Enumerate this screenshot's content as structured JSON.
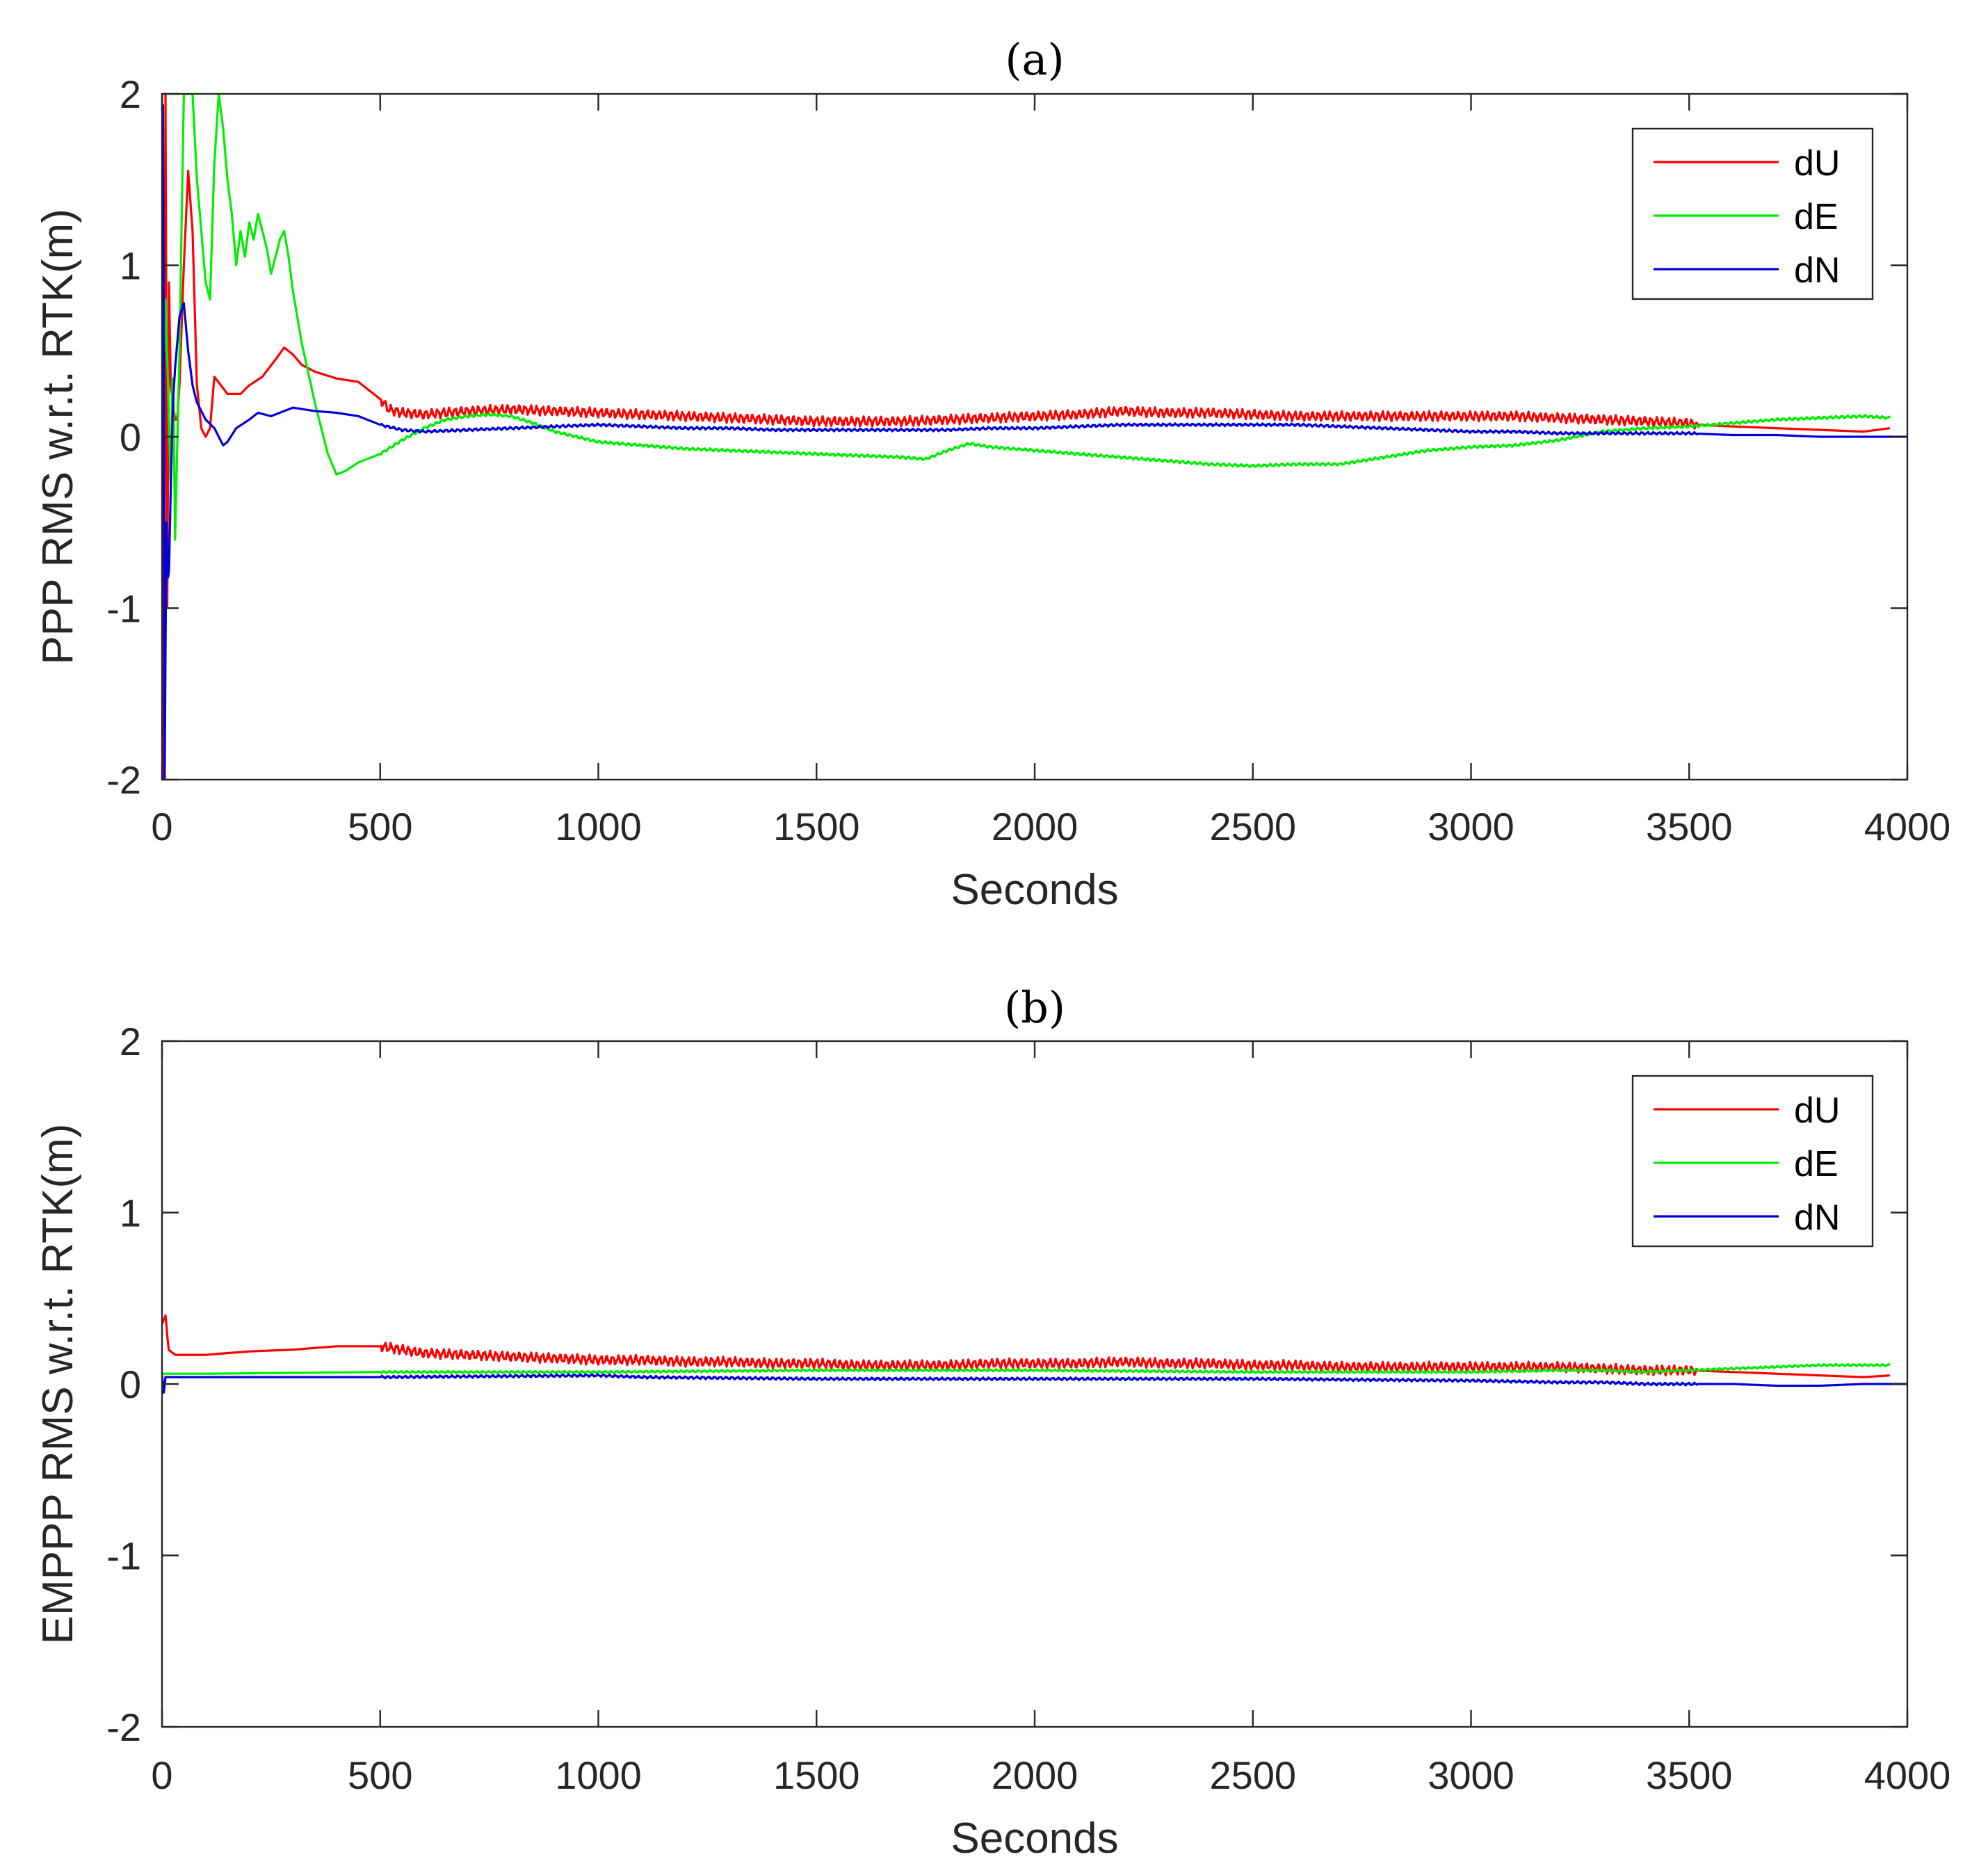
{
  "chart_data": [
    {
      "type": "line",
      "title": "(a)",
      "xlabel": "Seconds",
      "ylabel": "PPP RMS w.r.t. RTK(m)",
      "xlim": [
        0,
        4000
      ],
      "ylim": [
        -2,
        2
      ],
      "xticks": [
        0,
        500,
        1000,
        1500,
        2000,
        2500,
        3000,
        3500,
        4000
      ],
      "yticks": [
        -2,
        -1,
        0,
        1,
        2
      ],
      "legend_position": "top-right",
      "series": [
        {
          "name": "dU",
          "color": "#ff0000",
          "noise": 0.03,
          "noise_end": 3520,
          "x": [
            0,
            4,
            8,
            12,
            16,
            20,
            25,
            30,
            35,
            40,
            50,
            60,
            70,
            80,
            90,
            100,
            110,
            120,
            135,
            150,
            180,
            200,
            230,
            260,
            280,
            300,
            320,
            350,
            400,
            450,
            500,
            520,
            550,
            600,
            700,
            800,
            900,
            1000,
            1100,
            1200,
            1300,
            1400,
            1500,
            1600,
            1700,
            1800,
            1900,
            2000,
            2100,
            2200,
            2300,
            2400,
            2500,
            2600,
            2700,
            2800,
            2900,
            3000,
            3100,
            3200,
            3300,
            3400,
            3500,
            3520,
            3600,
            3700,
            3800,
            3900,
            3960
          ],
          "values": [
            2.0,
            -2.0,
            2.0,
            -1.0,
            0.9,
            0.3,
            0.2,
            0.1,
            0.1,
            0.3,
            1.0,
            1.55,
            1.2,
            0.3,
            0.05,
            0.0,
            0.05,
            0.35,
            0.3,
            0.25,
            0.25,
            0.3,
            0.35,
            0.45,
            0.52,
            0.48,
            0.42,
            0.38,
            0.34,
            0.32,
            0.22,
            0.16,
            0.14,
            0.13,
            0.15,
            0.16,
            0.15,
            0.14,
            0.13,
            0.12,
            0.11,
            0.1,
            0.09,
            0.09,
            0.09,
            0.1,
            0.11,
            0.12,
            0.13,
            0.15,
            0.14,
            0.14,
            0.13,
            0.12,
            0.12,
            0.12,
            0.12,
            0.12,
            0.12,
            0.11,
            0.1,
            0.09,
            0.08,
            0.07,
            0.06,
            0.05,
            0.04,
            0.03,
            0.05
          ]
        },
        {
          "name": "dE",
          "color": "#00ee00",
          "noise": 0.008,
          "noise_end": 4000,
          "x": [
            0,
            8,
            15,
            20,
            25,
            30,
            40,
            50,
            60,
            70,
            80,
            90,
            100,
            110,
            120,
            130,
            140,
            150,
            160,
            170,
            180,
            190,
            200,
            210,
            220,
            230,
            240,
            250,
            260,
            270,
            280,
            290,
            300,
            320,
            350,
            380,
            400,
            420,
            450,
            500,
            550,
            600,
            650,
            700,
            750,
            800,
            850,
            900,
            1000,
            1100,
            1200,
            1300,
            1400,
            1500,
            1600,
            1700,
            1750,
            1800,
            1850,
            1900,
            2000,
            2100,
            2200,
            2300,
            2400,
            2500,
            2600,
            2700,
            2800,
            2900,
            3000,
            3100,
            3200,
            3300,
            3400,
            3500,
            3600,
            3700,
            3800,
            3900,
            3960
          ],
          "values": [
            0.0,
            0.8,
            0.2,
            -0.3,
            0.5,
            -0.6,
            0.5,
            2.0,
            2.0,
            2.0,
            1.5,
            1.2,
            0.9,
            0.8,
            1.6,
            2.0,
            1.8,
            1.5,
            1.3,
            1.0,
            1.2,
            1.05,
            1.25,
            1.15,
            1.3,
            1.2,
            1.1,
            0.95,
            1.05,
            1.15,
            1.2,
            1.05,
            0.85,
            0.55,
            0.2,
            -0.1,
            -0.22,
            -0.2,
            -0.15,
            -0.1,
            -0.02,
            0.05,
            0.1,
            0.12,
            0.13,
            0.12,
            0.08,
            0.03,
            -0.03,
            -0.05,
            -0.07,
            -0.08,
            -0.09,
            -0.1,
            -0.11,
            -0.12,
            -0.13,
            -0.08,
            -0.04,
            -0.06,
            -0.08,
            -0.1,
            -0.12,
            -0.14,
            -0.16,
            -0.17,
            -0.16,
            -0.16,
            -0.12,
            -0.08,
            -0.06,
            -0.05,
            -0.02,
            0.03,
            0.05,
            0.06,
            0.08,
            0.1,
            0.11,
            0.12,
            0.11
          ]
        },
        {
          "name": "dN",
          "color": "#0000dd",
          "noise": 0.008,
          "noise_end": 3520,
          "x": [
            0,
            3,
            6,
            10,
            15,
            20,
            25,
            30,
            40,
            50,
            60,
            70,
            80,
            100,
            120,
            140,
            150,
            170,
            200,
            220,
            250,
            280,
            300,
            350,
            400,
            450,
            500,
            550,
            600,
            700,
            800,
            900,
            1000,
            1100,
            1200,
            1300,
            1400,
            1500,
            1600,
            1700,
            1800,
            1900,
            2000,
            2100,
            2200,
            2300,
            2400,
            2500,
            2600,
            2700,
            2800,
            2900,
            3000,
            3100,
            3200,
            3300,
            3400,
            3500,
            3600,
            3700,
            3800,
            3900,
            4000
          ],
          "values": [
            1.8,
            2.0,
            -2.0,
            -0.5,
            -0.9,
            -0.3,
            0.2,
            0.4,
            0.7,
            0.78,
            0.5,
            0.3,
            0.2,
            0.1,
            0.05,
            -0.05,
            -0.03,
            0.05,
            0.1,
            0.14,
            0.12,
            0.15,
            0.17,
            0.15,
            0.14,
            0.12,
            0.07,
            0.04,
            0.03,
            0.04,
            0.05,
            0.06,
            0.07,
            0.06,
            0.05,
            0.05,
            0.04,
            0.04,
            0.04,
            0.04,
            0.04,
            0.05,
            0.05,
            0.06,
            0.07,
            0.07,
            0.07,
            0.07,
            0.07,
            0.06,
            0.05,
            0.04,
            0.03,
            0.03,
            0.02,
            0.02,
            0.02,
            0.02,
            0.01,
            0.01,
            0.0,
            0.0,
            0.0
          ]
        }
      ]
    },
    {
      "type": "line",
      "title": "(b)",
      "xlabel": "Seconds",
      "ylabel": "EMPPP RMS w.r.t. RTK(m)",
      "xlim": [
        0,
        4000
      ],
      "ylim": [
        -2,
        2
      ],
      "xticks": [
        0,
        500,
        1000,
        1500,
        2000,
        2500,
        3000,
        3500,
        4000
      ],
      "yticks": [
        -2,
        -1,
        0,
        1,
        2
      ],
      "legend_position": "top-right",
      "series": [
        {
          "name": "dU",
          "color": "#ff0000",
          "noise": 0.03,
          "noise_end": 3520,
          "x": [
            0,
            8,
            15,
            30,
            100,
            200,
            300,
            400,
            500,
            550,
            600,
            700,
            800,
            900,
            1000,
            1100,
            1200,
            1300,
            1400,
            1500,
            1600,
            1700,
            1800,
            1900,
            2000,
            2100,
            2200,
            2300,
            2400,
            2500,
            2600,
            2700,
            2800,
            2900,
            3000,
            3100,
            3200,
            3300,
            3400,
            3500,
            3600,
            3700,
            3800,
            3900,
            3960
          ],
          "values": [
            0.35,
            0.4,
            0.2,
            0.17,
            0.17,
            0.19,
            0.2,
            0.22,
            0.22,
            0.2,
            0.18,
            0.17,
            0.16,
            0.15,
            0.14,
            0.14,
            0.13,
            0.13,
            0.12,
            0.12,
            0.11,
            0.11,
            0.11,
            0.12,
            0.12,
            0.12,
            0.13,
            0.12,
            0.12,
            0.11,
            0.11,
            0.1,
            0.1,
            0.1,
            0.1,
            0.1,
            0.1,
            0.09,
            0.08,
            0.08,
            0.07,
            0.06,
            0.05,
            0.04,
            0.05
          ]
        },
        {
          "name": "dE",
          "color": "#00ee00",
          "noise": 0.006,
          "noise_end": 4000,
          "x": [
            0,
            100,
            500,
            1000,
            1500,
            2000,
            2500,
            3000,
            3200,
            3300,
            3400,
            3500,
            3600,
            3700,
            3800,
            3900,
            3960
          ],
          "values": [
            0.06,
            0.06,
            0.07,
            0.07,
            0.08,
            0.08,
            0.07,
            0.07,
            0.08,
            0.08,
            0.07,
            0.08,
            0.09,
            0.1,
            0.11,
            0.11,
            0.11
          ]
        },
        {
          "name": "dN",
          "color": "#0000dd",
          "noise": 0.008,
          "noise_end": 3520,
          "x": [
            0,
            4,
            8,
            20,
            100,
            500,
            1000,
            1100,
            1500,
            2000,
            2500,
            3000,
            3200,
            3300,
            3400,
            3500,
            3600,
            3700,
            3800,
            3900,
            4000
          ],
          "values": [
            0.05,
            -0.05,
            0.04,
            0.04,
            0.04,
            0.04,
            0.05,
            0.04,
            0.03,
            0.03,
            0.03,
            0.02,
            0.01,
            0.01,
            0.0,
            0.0,
            0.0,
            -0.01,
            -0.01,
            0.0,
            0.0
          ]
        }
      ]
    }
  ]
}
